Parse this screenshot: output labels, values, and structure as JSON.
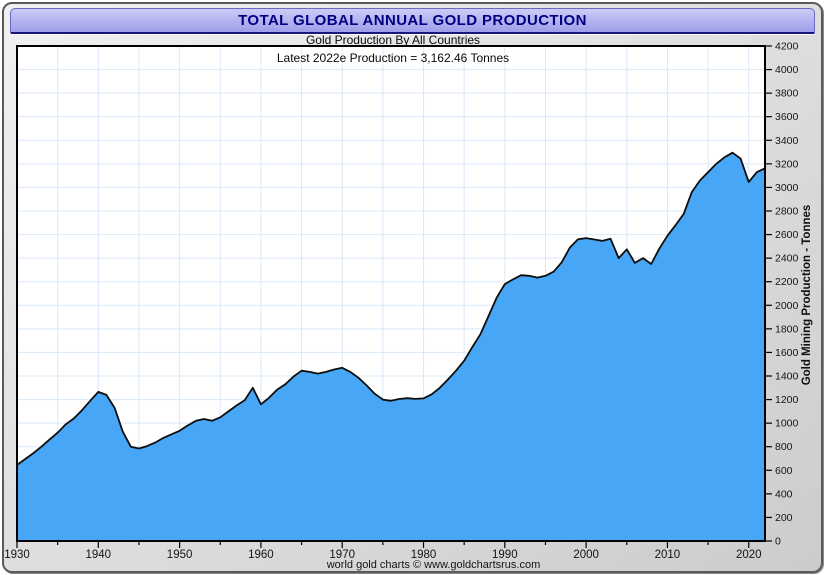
{
  "header": {
    "title": "TOTAL GLOBAL ANNUAL GOLD PRODUCTION",
    "bar_color": "#b2b2f0",
    "text_color": "#000082"
  },
  "subtitle": "Gold Production By All Countries",
  "annotation": "Latest 2022e Production = 3,162.46 Tonnes",
  "footer": "world gold charts © www.goldchartsrus.com",
  "chart_data": {
    "type": "area",
    "title": "TOTAL GLOBAL ANNUAL GOLD PRODUCTION",
    "subtitle": "Gold Production By All Countries",
    "annotation": "Latest 2022e Production = 3,162.46 Tonnes",
    "xlabel": "",
    "ylabel": "Gold Mining Production - Tonnes",
    "x_range": [
      1930,
      2022
    ],
    "ylim": [
      0,
      4200
    ],
    "y_tick_step": 200,
    "x_tick_major": 10,
    "x_grid_step": 5,
    "grid": true,
    "legend": "none",
    "plot_bg": "#ffffff",
    "grid_color": "#d9e8f8",
    "area_fill": "#47a7f6",
    "line_color": "#0d0d0d",
    "axis_color": "#000000",
    "tick_label_color": "#141414",
    "x": [
      1930,
      1931,
      1932,
      1933,
      1934,
      1935,
      1936,
      1937,
      1938,
      1939,
      1940,
      1941,
      1942,
      1943,
      1944,
      1945,
      1946,
      1947,
      1948,
      1949,
      1950,
      1951,
      1952,
      1953,
      1954,
      1955,
      1956,
      1957,
      1958,
      1959,
      1960,
      1961,
      1962,
      1963,
      1964,
      1965,
      1966,
      1967,
      1968,
      1969,
      1970,
      1971,
      1972,
      1973,
      1974,
      1975,
      1976,
      1977,
      1978,
      1979,
      1980,
      1981,
      1982,
      1983,
      1984,
      1985,
      1986,
      1987,
      1988,
      1989,
      1990,
      1991,
      1992,
      1993,
      1994,
      1995,
      1996,
      1997,
      1998,
      1999,
      2000,
      2001,
      2002,
      2003,
      2004,
      2005,
      2006,
      2007,
      2008,
      2009,
      2010,
      2011,
      2012,
      2013,
      2014,
      2015,
      2016,
      2017,
      2018,
      2019,
      2020,
      2021,
      2022
    ],
    "values": [
      645,
      695,
      745,
      800,
      860,
      920,
      990,
      1040,
      1110,
      1190,
      1265,
      1240,
      1130,
      930,
      800,
      785,
      805,
      835,
      875,
      905,
      935,
      980,
      1020,
      1035,
      1020,
      1050,
      1100,
      1150,
      1195,
      1300,
      1160,
      1215,
      1285,
      1330,
      1395,
      1445,
      1435,
      1420,
      1435,
      1455,
      1470,
      1435,
      1385,
      1320,
      1250,
      1200,
      1190,
      1205,
      1212,
      1206,
      1210,
      1245,
      1300,
      1370,
      1445,
      1530,
      1645,
      1755,
      1910,
      2065,
      2180,
      2220,
      2255,
      2250,
      2235,
      2250,
      2285,
      2365,
      2490,
      2560,
      2570,
      2558,
      2546,
      2565,
      2400,
      2475,
      2360,
      2400,
      2350,
      2480,
      2590,
      2680,
      2775,
      2960,
      3060,
      3130,
      3200,
      3255,
      3295,
      3245,
      3045,
      3130,
      3162.46
    ]
  }
}
